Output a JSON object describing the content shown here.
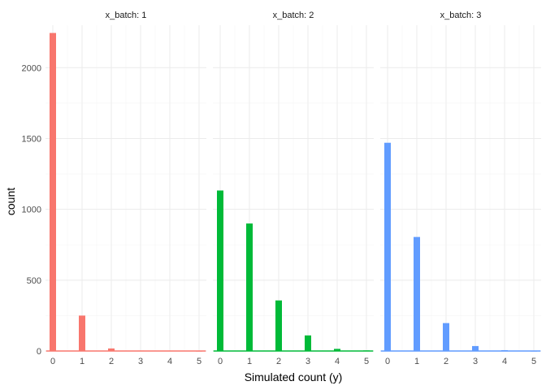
{
  "chart_data": {
    "type": "bar",
    "facet_label_prefix": "x_batch: ",
    "xlabel": "Simulated count (y)",
    "ylabel": "count",
    "xlim": [
      -0.25,
      5.25
    ],
    "ylim": [
      0,
      2300
    ],
    "x_ticks": [
      0,
      1,
      2,
      3,
      4,
      5
    ],
    "y_ticks": [
      0,
      500,
      1000,
      1500,
      2000
    ],
    "x": [
      0,
      1,
      2,
      3,
      4,
      5
    ],
    "grid": true,
    "legend": "none",
    "panels": [
      {
        "strip": "1",
        "color": "#F8766D",
        "values": [
          2245,
          250,
          18,
          3,
          2,
          1
        ]
      },
      {
        "strip": "2",
        "color": "#00BA38",
        "values": [
          1133,
          900,
          357,
          110,
          15,
          4
        ]
      },
      {
        "strip": "3",
        "color": "#619CFF",
        "values": [
          1470,
          805,
          197,
          35,
          6,
          1
        ]
      }
    ]
  }
}
